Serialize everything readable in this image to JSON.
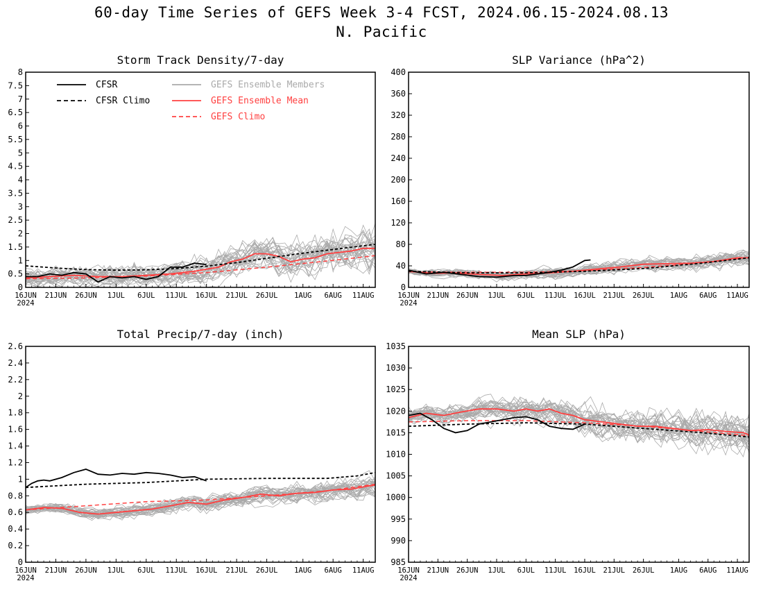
{
  "title_line1": "60-day Time Series of GEFS Week 3-4 FCST, 2024.06.15-2024.08.13",
  "title_line2": "N. Pacific",
  "x_tick_labels": [
    "16JUN",
    "21JUN",
    "26JUN",
    "1JUL",
    "6JUL",
    "11JUL",
    "16JUL",
    "21JUL",
    "26JUL",
    "1AUG",
    "6AUG",
    "11AUG"
  ],
  "x_tick_days": [
    0,
    5,
    10,
    15,
    20,
    25,
    30,
    35,
    40,
    46,
    51,
    56
  ],
  "x_year_label": "2024",
  "x_range_days": [
    0,
    58
  ],
  "legend": {
    "cfsr": "CFSR",
    "cfsr_climo": "CFSR Climo",
    "gefs_members": "GEFS Ensemble Members",
    "gefs_mean": "GEFS Ensemble Mean",
    "gefs_climo": "GEFS Climo"
  },
  "colors": {
    "cfsr": "#000000",
    "members": "#aaaaaa",
    "gefs": "#ff4040"
  },
  "chart_data": [
    {
      "type": "line",
      "title": "Storm Track Density/7-day",
      "ylim": [
        0,
        8
      ],
      "yticks": [
        "0",
        "0.5",
        "1",
        "1.5",
        "2",
        "2.5",
        "3",
        "3.5",
        "4",
        "4.5",
        "5",
        "5.5",
        "6",
        "6.5",
        "7",
        "7.5",
        "8"
      ],
      "members_count": 30,
      "series": {
        "cfsr": {
          "x": [
            0,
            2,
            4,
            6,
            8,
            10,
            12,
            14,
            16,
            18,
            20,
            22,
            24,
            26,
            28,
            30
          ],
          "y": [
            0.4,
            0.4,
            0.5,
            0.45,
            0.55,
            0.5,
            0.2,
            0.4,
            0.35,
            0.4,
            0.3,
            0.4,
            0.75,
            0.75,
            0.9,
            0.85
          ]
        },
        "cfsr_climo": {
          "x": [
            0,
            5,
            10,
            15,
            20,
            25,
            30,
            35,
            40,
            45,
            50,
            55,
            58
          ],
          "y": [
            0.8,
            0.72,
            0.66,
            0.64,
            0.65,
            0.7,
            0.79,
            0.92,
            1.08,
            1.24,
            1.38,
            1.52,
            1.6
          ]
        },
        "gefs_mean": {
          "x": [
            0,
            4,
            8,
            12,
            16,
            20,
            24,
            28,
            32,
            34,
            36,
            38,
            40,
            42,
            44,
            46,
            48,
            50,
            52,
            54,
            56,
            58
          ],
          "y": [
            0.35,
            0.4,
            0.45,
            0.4,
            0.4,
            0.45,
            0.5,
            0.6,
            0.75,
            0.95,
            1.05,
            1.25,
            1.25,
            1.15,
            0.95,
            1.05,
            1.1,
            1.25,
            1.3,
            1.35,
            1.45,
            1.45
          ]
        },
        "gefs_climo": {
          "x": [
            0,
            10,
            20,
            30,
            40,
            50,
            58
          ],
          "y": [
            0.32,
            0.35,
            0.42,
            0.55,
            0.75,
            0.98,
            1.18
          ]
        }
      }
    },
    {
      "type": "line",
      "title": "SLP Variance (hPa^2)",
      "ylim": [
        0,
        400
      ],
      "yticks": [
        "0",
        "40",
        "80",
        "120",
        "160",
        "200",
        "240",
        "280",
        "320",
        "360",
        "400"
      ],
      "members_count": 30,
      "series": {
        "cfsr": {
          "x": [
            0,
            3,
            6,
            9,
            12,
            15,
            18,
            20,
            22,
            24,
            26,
            28,
            30,
            31
          ],
          "y": [
            32,
            25,
            28,
            24,
            20,
            19,
            22,
            22,
            25,
            28,
            32,
            38,
            50,
            51
          ]
        },
        "cfsr_climo": {
          "x": [
            0,
            10,
            20,
            30,
            40,
            50,
            58
          ],
          "y": [
            30,
            27,
            27,
            30,
            35,
            45,
            55
          ]
        },
        "gefs_mean": {
          "x": [
            0,
            4,
            8,
            12,
            16,
            20,
            24,
            28,
            32,
            36,
            40,
            44,
            48,
            52,
            56,
            58
          ],
          "y": [
            30,
            26,
            27,
            24,
            22,
            25,
            27,
            30,
            34,
            38,
            43,
            44,
            45,
            48,
            55,
            55
          ]
        },
        "gefs_climo": {
          "x": [
            0,
            10,
            20,
            30,
            40,
            50,
            58
          ],
          "y": [
            29,
            28,
            28,
            31,
            37,
            46,
            56
          ]
        }
      }
    },
    {
      "type": "line",
      "title": "Total Precip/7-day (inch)",
      "ylim": [
        0,
        2.6
      ],
      "yticks": [
        "0",
        "0.2",
        "0.4",
        "0.6",
        "0.8",
        "1",
        "1.2",
        "1.4",
        "1.6",
        "1.8",
        "2",
        "2.2",
        "2.4",
        "2.6"
      ],
      "members_count": 30,
      "series": {
        "cfsr": {
          "x": [
            0,
            1,
            2,
            3,
            4,
            6,
            8,
            10,
            12,
            14,
            16,
            18,
            20,
            22,
            24,
            26,
            28,
            30
          ],
          "y": [
            0.9,
            0.95,
            0.98,
            0.99,
            0.98,
            1.02,
            1.08,
            1.12,
            1.06,
            1.05,
            1.07,
            1.06,
            1.08,
            1.07,
            1.05,
            1.02,
            1.03,
            0.98
          ]
        },
        "cfsr_climo": {
          "x": [
            0,
            10,
            20,
            30,
            40,
            50,
            55,
            58
          ],
          "y": [
            0.9,
            0.94,
            0.96,
            1.0,
            1.01,
            1.01,
            1.04,
            1.08
          ]
        },
        "gefs_mean": {
          "x": [
            0,
            3,
            6,
            9,
            12,
            15,
            18,
            21,
            24,
            27,
            30,
            33,
            36,
            39,
            42,
            45,
            48,
            51,
            54,
            57,
            58
          ],
          "y": [
            0.63,
            0.66,
            0.65,
            0.6,
            0.58,
            0.6,
            0.62,
            0.64,
            0.68,
            0.72,
            0.7,
            0.75,
            0.78,
            0.82,
            0.8,
            0.83,
            0.84,
            0.87,
            0.88,
            0.92,
            0.93
          ]
        },
        "gefs_climo": {
          "x": [
            0,
            10,
            20,
            30,
            40,
            50,
            58
          ],
          "y": [
            0.63,
            0.68,
            0.73,
            0.75,
            0.8,
            0.86,
            0.94
          ]
        }
      }
    },
    {
      "type": "line",
      "title": "Mean SLP (hPa)",
      "ylim": [
        985,
        1035
      ],
      "yticks": [
        "985",
        "990",
        "995",
        "1000",
        "1005",
        "1010",
        "1015",
        "1020",
        "1025",
        "1030",
        "1035"
      ],
      "members_count": 30,
      "series": {
        "cfsr": {
          "x": [
            0,
            2,
            4,
            6,
            8,
            10,
            12,
            14,
            16,
            18,
            20,
            22,
            24,
            26,
            28,
            30
          ],
          "y": [
            1019,
            1019.5,
            1018,
            1016,
            1015,
            1015.5,
            1017,
            1017.5,
            1018,
            1018.5,
            1018.7,
            1018,
            1016.5,
            1016,
            1015.8,
            1017
          ]
        },
        "cfsr_climo": {
          "x": [
            0,
            10,
            20,
            30,
            40,
            50,
            58
          ],
          "y": [
            1016.5,
            1017,
            1017.3,
            1017,
            1016,
            1015,
            1014
          ]
        },
        "gefs_mean": {
          "x": [
            0,
            3,
            6,
            9,
            12,
            15,
            18,
            20,
            22,
            24,
            26,
            28,
            30,
            33,
            36,
            39,
            42,
            45,
            48,
            51,
            54,
            57,
            58
          ],
          "y": [
            1018.5,
            1019.5,
            1019,
            1019.8,
            1020.5,
            1020.5,
            1020,
            1020.5,
            1020,
            1020.5,
            1019.5,
            1019,
            1018,
            1017.5,
            1017,
            1016.5,
            1016.5,
            1016,
            1015.5,
            1015.7,
            1015.3,
            1015,
            1014.5
          ]
        },
        "gefs_climo": {
          "x": [
            0,
            10,
            20,
            30,
            40,
            50,
            58
          ],
          "y": [
            1017.5,
            1017.8,
            1017.8,
            1017.3,
            1016.5,
            1015.3,
            1014.3
          ]
        }
      }
    }
  ]
}
